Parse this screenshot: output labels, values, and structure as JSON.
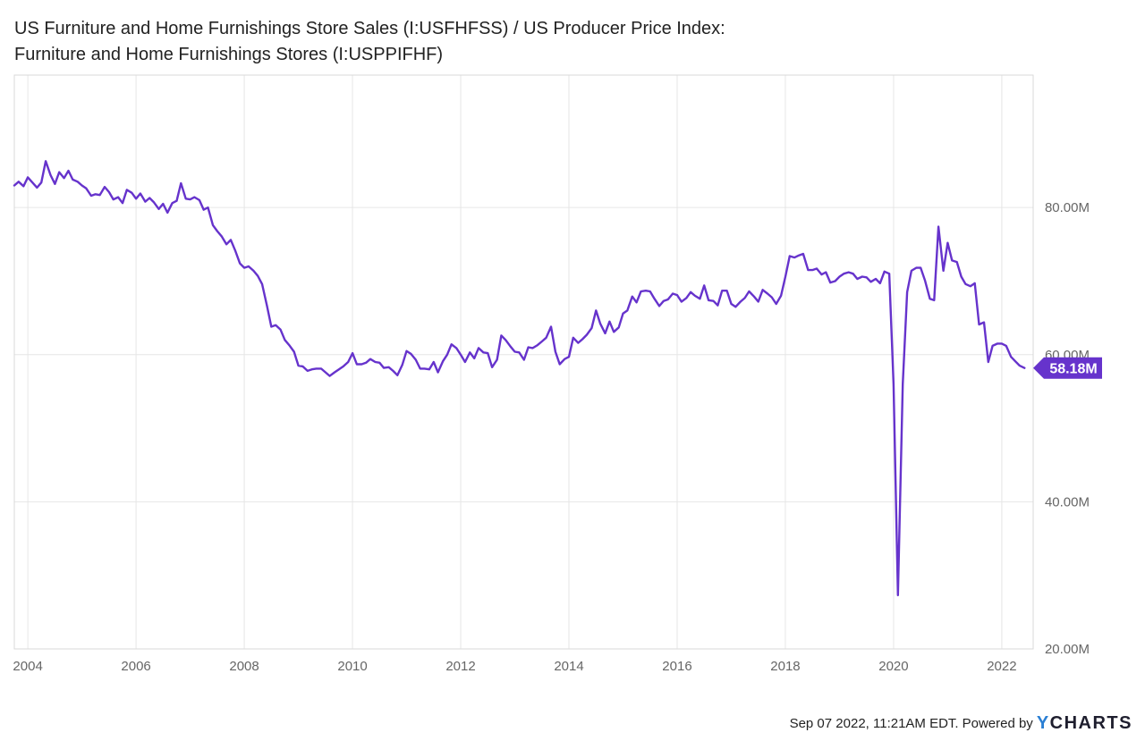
{
  "title_line1": "US Furniture and Home Furnishings Store Sales (I:USFHFSS) / US Producer Price Index:",
  "title_line2": "Furniture and Home Furnishings Stores (I:USPPIFHF)",
  "footer": {
    "timestamp": "Sep 07 2022, 11:21AM EDT.",
    "powered_by": "Powered by",
    "brand_y": "Y",
    "brand_rest": "CHARTS"
  },
  "colors": {
    "series": "#6633cc",
    "grid": "#e6e6e6",
    "axis_text": "#666666",
    "frame": "#d9d9d9"
  },
  "chart_data": {
    "type": "line",
    "title": "US Furniture and Home Furnishings Store Sales (I:USFHFSS) / US Producer Price Index: Furniture and Home Furnishings Stores (I:USPPIFHF)",
    "xlabel": "",
    "ylabel": "",
    "xlim": [
      2003.75,
      2022.58
    ],
    "ylim": [
      20,
      98
    ],
    "grid": true,
    "legend": "none",
    "x_ticks": [
      "2004",
      "2006",
      "2008",
      "2010",
      "2012",
      "2014",
      "2016",
      "2018",
      "2020",
      "2022"
    ],
    "y_ticks": [
      {
        "value": 20,
        "label": "20.00M"
      },
      {
        "value": 40,
        "label": "40.00M"
      },
      {
        "value": 60,
        "label": "60.00M"
      },
      {
        "value": 80,
        "label": "80.00M"
      }
    ],
    "last_value_label": "58.18M",
    "last_value": 58.18,
    "series": [
      {
        "color": "#6633cc",
        "points": [
          [
            2003.75,
            83.0
          ],
          [
            2003.83,
            83.5
          ],
          [
            2003.92,
            82.9
          ],
          [
            2004.0,
            84.1
          ],
          [
            2004.17,
            82.7
          ],
          [
            2004.25,
            83.4
          ],
          [
            2004.33,
            86.3
          ],
          [
            2004.42,
            84.4
          ],
          [
            2004.5,
            83.2
          ],
          [
            2004.58,
            84.8
          ],
          [
            2004.67,
            84.0
          ],
          [
            2004.75,
            85.0
          ],
          [
            2004.83,
            83.8
          ],
          [
            2004.92,
            83.5
          ],
          [
            2005.0,
            83.0
          ],
          [
            2005.08,
            82.6
          ],
          [
            2005.17,
            81.6
          ],
          [
            2005.25,
            81.8
          ],
          [
            2005.33,
            81.7
          ],
          [
            2005.42,
            82.8
          ],
          [
            2005.5,
            82.1
          ],
          [
            2005.58,
            81.1
          ],
          [
            2005.67,
            81.4
          ],
          [
            2005.75,
            80.6
          ],
          [
            2005.83,
            82.4
          ],
          [
            2005.92,
            82.0
          ],
          [
            2006.0,
            81.2
          ],
          [
            2006.08,
            81.9
          ],
          [
            2006.17,
            80.8
          ],
          [
            2006.25,
            81.3
          ],
          [
            2006.33,
            80.7
          ],
          [
            2006.42,
            79.8
          ],
          [
            2006.5,
            80.5
          ],
          [
            2006.58,
            79.3
          ],
          [
            2006.67,
            80.6
          ],
          [
            2006.75,
            80.9
          ],
          [
            2006.83,
            83.3
          ],
          [
            2006.92,
            81.2
          ],
          [
            2007.0,
            81.1
          ],
          [
            2007.08,
            81.4
          ],
          [
            2007.17,
            81.0
          ],
          [
            2007.25,
            79.7
          ],
          [
            2007.33,
            80.0
          ],
          [
            2007.42,
            77.6
          ],
          [
            2007.5,
            76.8
          ],
          [
            2007.58,
            76.1
          ],
          [
            2007.67,
            75.0
          ],
          [
            2007.75,
            75.6
          ],
          [
            2007.83,
            74.2
          ],
          [
            2007.92,
            72.4
          ],
          [
            2008.0,
            71.8
          ],
          [
            2008.08,
            72.0
          ],
          [
            2008.17,
            71.4
          ],
          [
            2008.25,
            70.7
          ],
          [
            2008.33,
            69.6
          ],
          [
            2008.42,
            66.6
          ],
          [
            2008.5,
            63.8
          ],
          [
            2008.58,
            64.0
          ],
          [
            2008.67,
            63.4
          ],
          [
            2008.75,
            62.0
          ],
          [
            2008.83,
            61.3
          ],
          [
            2008.92,
            60.4
          ],
          [
            2009.0,
            58.5
          ],
          [
            2009.08,
            58.4
          ],
          [
            2009.17,
            57.8
          ],
          [
            2009.25,
            58.0
          ],
          [
            2009.33,
            58.1
          ],
          [
            2009.42,
            58.1
          ],
          [
            2009.5,
            57.6
          ],
          [
            2009.58,
            57.1
          ],
          [
            2009.67,
            57.6
          ],
          [
            2009.75,
            58.0
          ],
          [
            2009.83,
            58.4
          ],
          [
            2009.92,
            59.0
          ],
          [
            2010.0,
            60.2
          ],
          [
            2010.08,
            58.7
          ],
          [
            2010.17,
            58.7
          ],
          [
            2010.25,
            58.9
          ],
          [
            2010.33,
            59.4
          ],
          [
            2010.42,
            59.0
          ],
          [
            2010.5,
            58.9
          ],
          [
            2010.58,
            58.2
          ],
          [
            2010.67,
            58.3
          ],
          [
            2010.75,
            57.8
          ],
          [
            2010.83,
            57.2
          ],
          [
            2010.92,
            58.6
          ],
          [
            2011.0,
            60.5
          ],
          [
            2011.08,
            60.1
          ],
          [
            2011.17,
            59.3
          ],
          [
            2011.25,
            58.1
          ],
          [
            2011.33,
            58.1
          ],
          [
            2011.42,
            58.0
          ],
          [
            2011.5,
            59.0
          ],
          [
            2011.58,
            57.6
          ],
          [
            2011.67,
            59.1
          ],
          [
            2011.75,
            60.0
          ],
          [
            2011.83,
            61.4
          ],
          [
            2011.92,
            60.9
          ],
          [
            2012.0,
            60.0
          ],
          [
            2012.08,
            59.0
          ],
          [
            2012.17,
            60.3
          ],
          [
            2012.25,
            59.5
          ],
          [
            2012.33,
            60.9
          ],
          [
            2012.42,
            60.3
          ],
          [
            2012.5,
            60.2
          ],
          [
            2012.58,
            58.3
          ],
          [
            2012.67,
            59.3
          ],
          [
            2012.75,
            62.6
          ],
          [
            2012.83,
            62.0
          ],
          [
            2012.92,
            61.1
          ],
          [
            2013.0,
            60.4
          ],
          [
            2013.08,
            60.3
          ],
          [
            2013.17,
            59.3
          ],
          [
            2013.25,
            61.0
          ],
          [
            2013.33,
            60.9
          ],
          [
            2013.42,
            61.3
          ],
          [
            2013.5,
            61.8
          ],
          [
            2013.58,
            62.3
          ],
          [
            2013.67,
            63.8
          ],
          [
            2013.75,
            60.4
          ],
          [
            2013.83,
            58.7
          ],
          [
            2013.92,
            59.4
          ],
          [
            2014.0,
            59.7
          ],
          [
            2014.08,
            62.3
          ],
          [
            2014.17,
            61.6
          ],
          [
            2014.25,
            62.1
          ],
          [
            2014.33,
            62.7
          ],
          [
            2014.42,
            63.6
          ],
          [
            2014.5,
            66.0
          ],
          [
            2014.58,
            64.2
          ],
          [
            2014.67,
            62.9
          ],
          [
            2014.75,
            64.5
          ],
          [
            2014.83,
            63.1
          ],
          [
            2014.92,
            63.7
          ],
          [
            2015.0,
            65.6
          ],
          [
            2015.08,
            66.0
          ],
          [
            2015.17,
            67.9
          ],
          [
            2015.25,
            67.1
          ],
          [
            2015.33,
            68.6
          ],
          [
            2015.42,
            68.7
          ],
          [
            2015.5,
            68.6
          ],
          [
            2015.58,
            67.6
          ],
          [
            2015.67,
            66.6
          ],
          [
            2015.75,
            67.3
          ],
          [
            2015.83,
            67.5
          ],
          [
            2015.92,
            68.3
          ],
          [
            2016.0,
            68.1
          ],
          [
            2016.08,
            67.2
          ],
          [
            2016.17,
            67.7
          ],
          [
            2016.25,
            68.5
          ],
          [
            2016.33,
            68.0
          ],
          [
            2016.42,
            67.6
          ],
          [
            2016.5,
            69.4
          ],
          [
            2016.58,
            67.4
          ],
          [
            2016.67,
            67.3
          ],
          [
            2016.75,
            66.7
          ],
          [
            2016.83,
            68.7
          ],
          [
            2016.92,
            68.7
          ],
          [
            2017.0,
            66.9
          ],
          [
            2017.08,
            66.5
          ],
          [
            2017.17,
            67.2
          ],
          [
            2017.25,
            67.7
          ],
          [
            2017.33,
            68.6
          ],
          [
            2017.42,
            67.9
          ],
          [
            2017.5,
            67.2
          ],
          [
            2017.58,
            68.8
          ],
          [
            2017.67,
            68.3
          ],
          [
            2017.75,
            67.8
          ],
          [
            2017.83,
            66.9
          ],
          [
            2017.92,
            68.0
          ],
          [
            2018.0,
            70.6
          ],
          [
            2018.08,
            73.4
          ],
          [
            2018.17,
            73.2
          ],
          [
            2018.25,
            73.5
          ],
          [
            2018.33,
            73.7
          ],
          [
            2018.42,
            71.5
          ],
          [
            2018.5,
            71.5
          ],
          [
            2018.58,
            71.7
          ],
          [
            2018.67,
            70.9
          ],
          [
            2018.75,
            71.2
          ],
          [
            2018.83,
            69.8
          ],
          [
            2018.92,
            70.0
          ],
          [
            2019.0,
            70.6
          ],
          [
            2019.08,
            71.0
          ],
          [
            2019.17,
            71.2
          ],
          [
            2019.25,
            71.0
          ],
          [
            2019.33,
            70.3
          ],
          [
            2019.42,
            70.6
          ],
          [
            2019.5,
            70.5
          ],
          [
            2019.58,
            69.9
          ],
          [
            2019.67,
            70.3
          ],
          [
            2019.75,
            69.7
          ],
          [
            2019.83,
            71.3
          ],
          [
            2019.92,
            71.0
          ],
          [
            2020.0,
            56.0
          ],
          [
            2020.08,
            27.3
          ],
          [
            2020.17,
            56.0
          ],
          [
            2020.25,
            68.5
          ],
          [
            2020.33,
            71.4
          ],
          [
            2020.42,
            71.8
          ],
          [
            2020.5,
            71.8
          ],
          [
            2020.58,
            70.1
          ],
          [
            2020.67,
            67.6
          ],
          [
            2020.75,
            67.4
          ],
          [
            2020.83,
            77.4
          ],
          [
            2020.92,
            71.4
          ],
          [
            2021.0,
            75.2
          ],
          [
            2021.08,
            72.8
          ],
          [
            2021.17,
            72.6
          ],
          [
            2021.25,
            70.6
          ],
          [
            2021.33,
            69.6
          ],
          [
            2021.42,
            69.3
          ],
          [
            2021.5,
            69.7
          ],
          [
            2021.58,
            64.1
          ],
          [
            2021.67,
            64.4
          ],
          [
            2021.75,
            59.0
          ],
          [
            2021.83,
            61.2
          ],
          [
            2021.92,
            61.5
          ],
          [
            2022.0,
            61.5
          ],
          [
            2022.08,
            61.2
          ],
          [
            2022.17,
            59.7
          ],
          [
            2022.25,
            59.1
          ],
          [
            2022.33,
            58.5
          ],
          [
            2022.42,
            58.18
          ]
        ]
      }
    ]
  }
}
